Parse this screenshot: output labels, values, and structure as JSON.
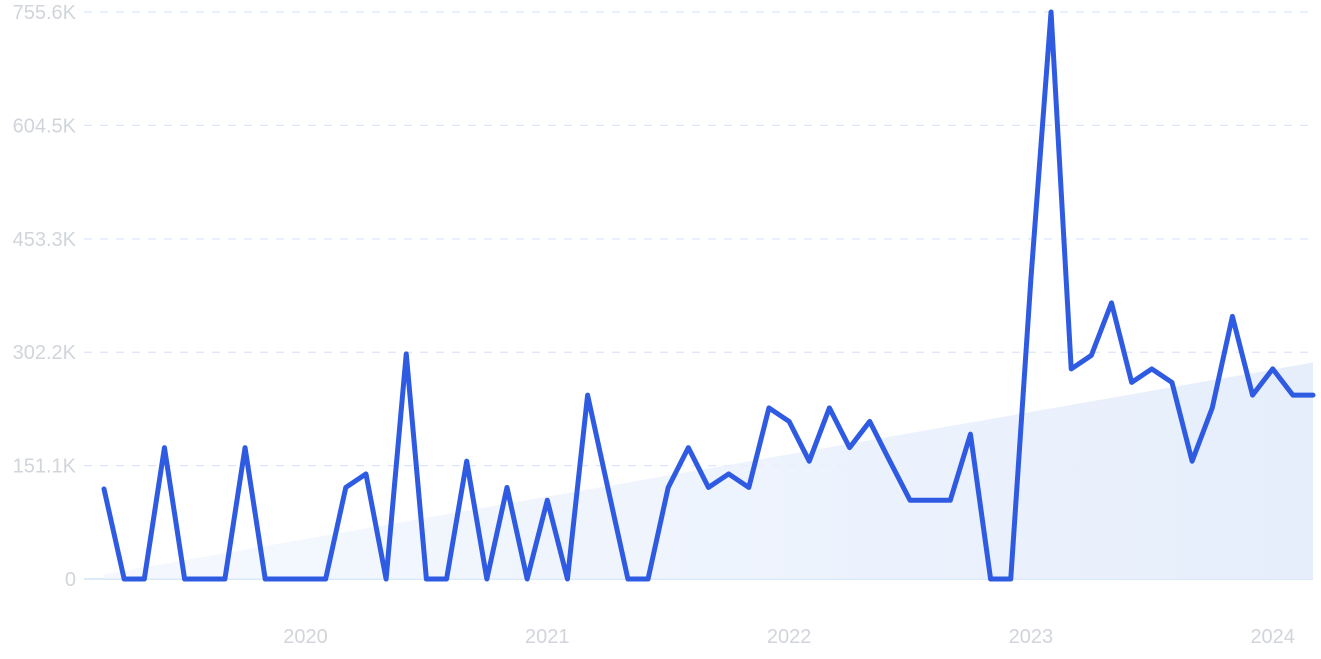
{
  "chart_data": {
    "type": "line",
    "title": "",
    "xlabel": "",
    "ylabel": "",
    "ylim": [
      0,
      755.6
    ],
    "y_unit": "K",
    "y_ticks": [
      0,
      151.1,
      302.2,
      453.3,
      604.5,
      755.6
    ],
    "y_tick_labels": [
      "0",
      "151.1K",
      "302.2K",
      "453.3K",
      "604.5K",
      "755.6K"
    ],
    "x_tick_labels": [
      "2020",
      "2021",
      "2022",
      "2023",
      "2024"
    ],
    "x_tick_values": [
      "2020-01",
      "2021-01",
      "2022-01",
      "2023-01",
      "2024-01"
    ],
    "grid": "horizontal dashed",
    "legend": "none",
    "trend_area": true,
    "series": [
      {
        "x": [
          "2019-03",
          "2019-04",
          "2019-05",
          "2019-06",
          "2019-07",
          "2019-08",
          "2019-09",
          "2019-10",
          "2019-11",
          "2019-12",
          "2020-01",
          "2020-02",
          "2020-03",
          "2020-04",
          "2020-05",
          "2020-06",
          "2020-07",
          "2020-08",
          "2020-09",
          "2020-10",
          "2020-11",
          "2020-12",
          "2021-01",
          "2021-02",
          "2021-03",
          "2021-04",
          "2021-05",
          "2021-06",
          "2021-07",
          "2021-08",
          "2021-09",
          "2021-10",
          "2021-11",
          "2021-12",
          "2022-01",
          "2022-02",
          "2022-03",
          "2022-04",
          "2022-05",
          "2022-06",
          "2022-07",
          "2022-08",
          "2022-09",
          "2022-10",
          "2022-11",
          "2022-12",
          "2023-01",
          "2023-02",
          "2023-03",
          "2023-04",
          "2023-05",
          "2023-06",
          "2023-07",
          "2023-08",
          "2023-09",
          "2023-10",
          "2023-11",
          "2023-12",
          "2024-01",
          "2024-02",
          "2024-03"
        ],
        "values": [
          120,
          0,
          0,
          175,
          0,
          0,
          0,
          175,
          0,
          0,
          0,
          0,
          122,
          140,
          0,
          300,
          0,
          0,
          157,
          0,
          122,
          0,
          105,
          0,
          245,
          122,
          0,
          0,
          122,
          175,
          122,
          140,
          122,
          228,
          210,
          157,
          228,
          175,
          210,
          157,
          105,
          105,
          105,
          193,
          0,
          0,
          400,
          755.6,
          280,
          298,
          368,
          262,
          280,
          262,
          157,
          228,
          350,
          245,
          280,
          245,
          245
        ],
        "color": "#2f5be3"
      }
    ],
    "colors": {
      "line": "#2f5be3",
      "grid": "#dde6f7",
      "baseline": "#cfe3f5",
      "tick_text": "#d1d5db",
      "trend_fill": "#eaf1fd"
    }
  }
}
